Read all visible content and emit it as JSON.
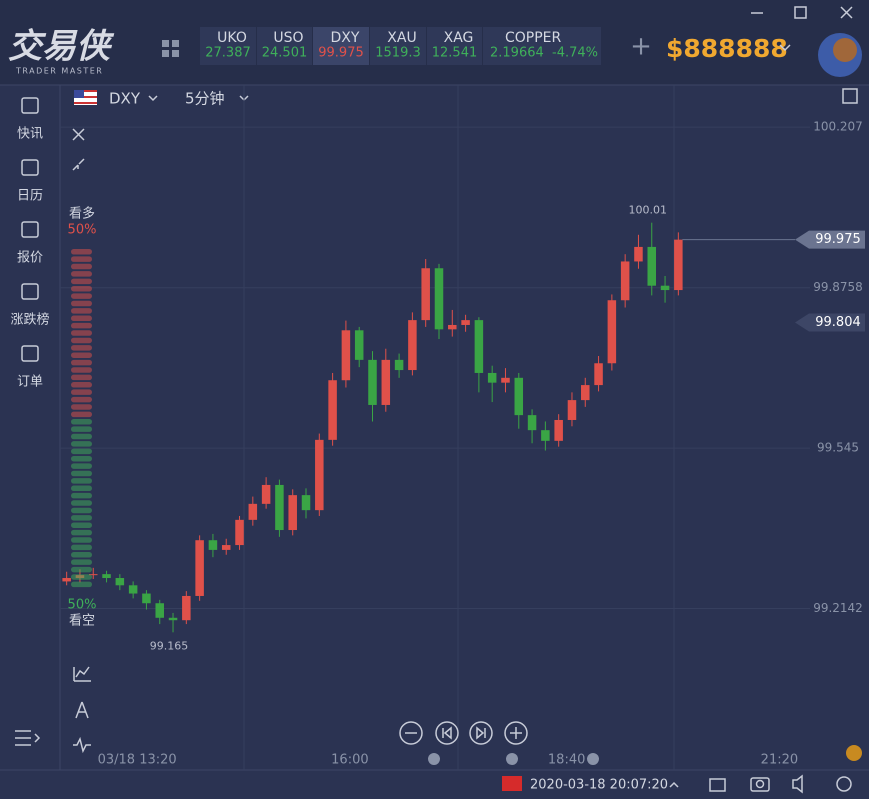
{
  "header": {
    "logo": "交易侠",
    "logo_sub": "TRADER MASTER",
    "balance": "$888888",
    "tickers": [
      {
        "name": "UKO",
        "value": "27.387",
        "color": "#3fb05a"
      },
      {
        "name": "USO",
        "value": "24.501",
        "color": "#3fb05a"
      },
      {
        "name": "DXY",
        "value": "99.975",
        "color": "#e0514a"
      },
      {
        "name": "XAU",
        "value": "1519.3",
        "color": "#3fb05a"
      },
      {
        "name": "XAG",
        "value": "12.541",
        "color": "#3fb05a"
      },
      {
        "name": "COPPER",
        "value": "2.19664",
        "change": "-4.74%",
        "color": "#3fb05a"
      }
    ]
  },
  "sidebar": [
    "快讯",
    "日历",
    "报价",
    "涨跌榜",
    "订单"
  ],
  "toolbar": {
    "symbol": "DXY",
    "interval": "5分钟"
  },
  "sentiment": {
    "long": {
      "label": "看多",
      "value": 50,
      "value_label": "50%",
      "color": "#e0514a"
    },
    "short": {
      "label": "看空",
      "value": 50,
      "value_label": "50%",
      "color": "#3fb05a"
    }
  },
  "chart_data": {
    "type": "candlestick",
    "up_color": "#e0514a",
    "down_color": "#3aa545",
    "open": [
      99.27,
      99.277,
      99.283,
      99.285,
      99.277,
      99.262,
      99.245,
      99.225,
      99.195,
      99.19,
      99.24,
      99.355,
      99.335,
      99.345,
      99.397,
      99.43,
      99.469,
      99.376,
      99.448,
      99.417,
      99.562,
      99.685,
      99.788,
      99.727,
      99.634,
      99.727,
      99.706,
      99.809,
      99.916,
      99.79,
      99.799,
      99.809,
      99.7,
      99.68,
      99.69,
      99.613,
      99.582,
      99.56,
      99.603,
      99.644,
      99.675,
      99.72,
      99.85,
      99.93,
      99.96,
      99.88,
      99.871
    ],
    "high": [
      99.29,
      99.295,
      99.298,
      99.292,
      99.285,
      99.27,
      99.252,
      99.232,
      99.205,
      99.25,
      99.365,
      99.368,
      99.358,
      99.405,
      99.445,
      99.485,
      99.48,
      99.46,
      99.462,
      99.575,
      99.7,
      99.808,
      99.795,
      99.745,
      99.75,
      99.74,
      99.825,
      99.935,
      99.925,
      99.83,
      99.82,
      99.815,
      99.715,
      99.71,
      99.7,
      99.625,
      99.6,
      99.615,
      99.66,
      99.69,
      99.735,
      99.862,
      99.945,
      99.985,
      100.01,
      99.9,
      99.99
    ],
    "low": [
      99.262,
      99.268,
      99.275,
      99.268,
      99.252,
      99.235,
      99.212,
      99.182,
      99.165,
      99.182,
      99.23,
      99.32,
      99.325,
      99.335,
      99.385,
      99.42,
      99.362,
      99.365,
      99.4,
      99.405,
      99.55,
      99.67,
      99.712,
      99.6,
      99.62,
      99.69,
      99.695,
      99.795,
      99.77,
      99.775,
      99.785,
      99.66,
      99.64,
      99.66,
      99.585,
      99.555,
      99.54,
      99.548,
      99.59,
      99.63,
      99.662,
      99.705,
      99.835,
      99.915,
      99.86,
      99.845,
      99.86
    ],
    "close": [
      99.277,
      99.283,
      99.285,
      99.277,
      99.262,
      99.245,
      99.225,
      99.195,
      99.19,
      99.24,
      99.355,
      99.335,
      99.345,
      99.397,
      99.43,
      99.469,
      99.376,
      99.448,
      99.417,
      99.562,
      99.685,
      99.788,
      99.727,
      99.634,
      99.727,
      99.706,
      99.809,
      99.916,
      99.79,
      99.799,
      99.809,
      99.7,
      99.68,
      99.69,
      99.613,
      99.582,
      99.56,
      99.603,
      99.644,
      99.675,
      99.72,
      99.85,
      99.93,
      99.96,
      99.88,
      99.871,
      99.975
    ],
    "xlim": [
      -0.5,
      55.9
    ],
    "ylim": [
      98.881,
      100.294
    ],
    "grid": true,
    "yticks": [
      100.207,
      99.8758,
      99.545,
      99.2142
    ],
    "xticks": [
      {
        "value": 5.3,
        "label": "03/18 13:20"
      },
      {
        "value": 21.3,
        "label": "16:00"
      },
      {
        "value": 37.6,
        "label": "18:40"
      },
      {
        "value": 53.6,
        "label": "21:20"
      }
    ],
    "annotations": [
      {
        "x": 44,
        "value": 100.01
      },
      {
        "x": 8,
        "value": 99.165
      }
    ],
    "price_lines": [
      {
        "value": 99.975,
        "color": "#6b7490"
      },
      {
        "value": 99.804,
        "color": "#3d4666"
      }
    ]
  },
  "footer": {
    "datetime": "2020-03-18 20:07:20"
  }
}
